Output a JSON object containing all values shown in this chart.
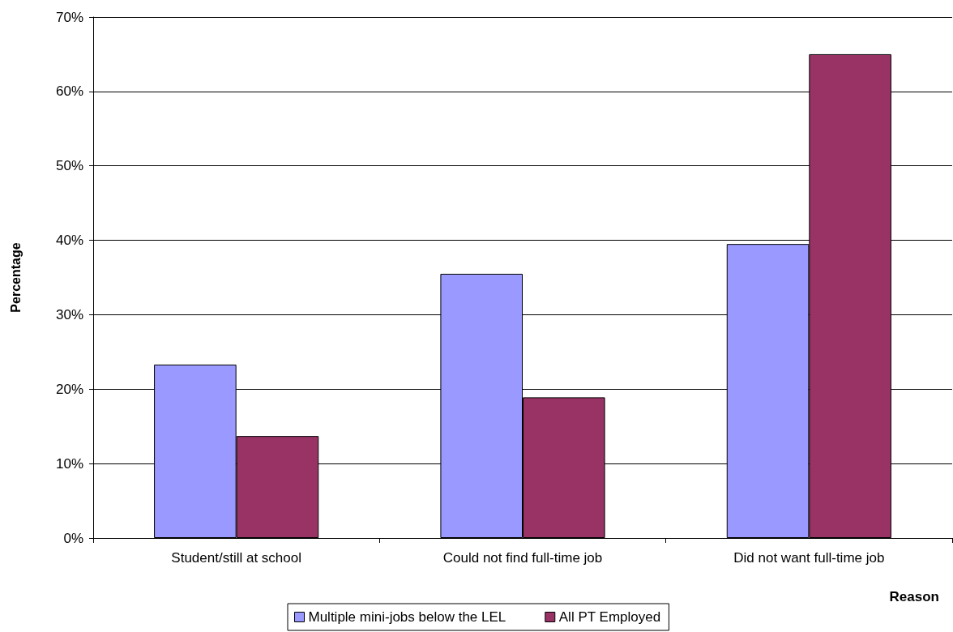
{
  "chart_data": {
    "type": "bar",
    "xlabel": "Reason",
    "ylabel": "Percentage",
    "categories": [
      "Student/still at school",
      "Could not find full-time job",
      "Did not want full-time job"
    ],
    "series": [
      {
        "name": "Multiple mini-jobs below the LEL",
        "color": "#9999ff",
        "values": [
          23.3,
          35.5,
          39.5
        ]
      },
      {
        "name": "All PT Employed",
        "color": "#993366",
        "values": [
          13.7,
          18.9,
          65.0
        ]
      }
    ],
    "ylim": [
      0,
      70
    ],
    "yticks": [
      {
        "value": 0,
        "label": "0%"
      },
      {
        "value": 10,
        "label": "10%"
      },
      {
        "value": 20,
        "label": "20%"
      },
      {
        "value": 30,
        "label": "30%"
      },
      {
        "value": 40,
        "label": "40%"
      },
      {
        "value": 50,
        "label": "50%"
      },
      {
        "value": 60,
        "label": "60%"
      },
      {
        "value": 70,
        "label": "70%"
      }
    ],
    "grid": "y",
    "legend": "bottom"
  }
}
